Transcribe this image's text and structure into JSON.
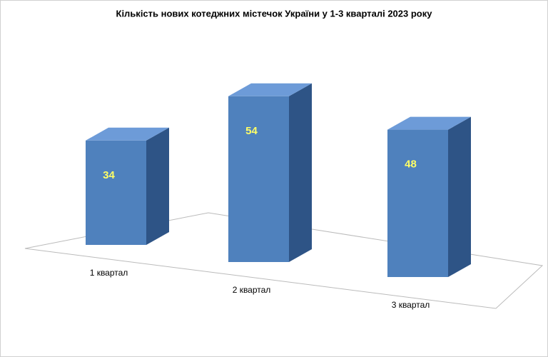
{
  "chart_data": {
    "type": "bar",
    "title": "Кількість нових котеджних містечок України у 1-3 кварталі 2023 року",
    "categories": [
      "1 квартал",
      "2 квартал",
      "3 квартал"
    ],
    "values": [
      34,
      54,
      48
    ],
    "color": "#4f81bd"
  }
}
